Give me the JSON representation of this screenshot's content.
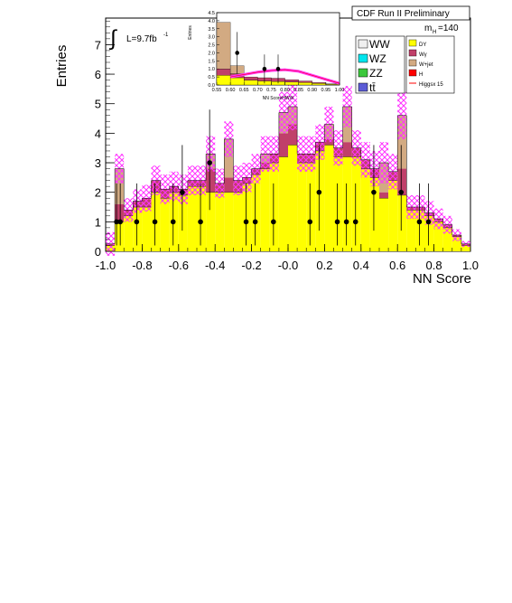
{
  "chart_data": {
    "type": "bar",
    "title": "CDF Run II Preliminary",
    "xlabel": "NN Score",
    "ylabel": "Entries",
    "xlim": [
      -1.0,
      1.0
    ],
    "ylim": [
      0,
      7.9
    ],
    "x_ticks": [
      "-1.0",
      "-0.8",
      "-0.6",
      "-0.4",
      "-0.2",
      "-0.0",
      "0.2",
      "0.4",
      "0.6",
      "0.8",
      "1.0"
    ],
    "y_ticks": [
      "0",
      "1",
      "2",
      "3",
      "4",
      "5",
      "6",
      "7"
    ],
    "luminosity_label": "L=9.7fb",
    "luminosity_exponent": "-1",
    "mass_label_main": "m",
    "mass_label_sub": "H",
    "mass_value": "=140",
    "legend_left": [
      {
        "label": "WW",
        "color": "#f0f0f0"
      },
      {
        "label": "WZ",
        "color": "#00e5ee"
      },
      {
        "label": "ZZ",
        "color": "#3cc83c"
      },
      {
        "label": "tt̄",
        "color": "#5c5cd6"
      }
    ],
    "legend_right": [
      {
        "label": "DY",
        "color": "#ffff00"
      },
      {
        "label": "Wγ",
        "color": "#c0406a"
      },
      {
        "label": "W+jet",
        "color": "#d2aa82"
      },
      {
        "label": "H",
        "color": "#ff0000"
      },
      {
        "label": "Higgsx 15",
        "color": "#ff0000",
        "style": "line"
      }
    ],
    "colors": {
      "dy": "#ffff00",
      "wgamma": "#c0406a",
      "wjet": "#d2aa82",
      "uncertainty": "#ff33ff",
      "higgs_line": "#ff0000"
    },
    "bin_edges": [
      -1.0,
      -0.95,
      -0.9,
      -0.85,
      -0.8,
      -0.75,
      -0.7,
      -0.65,
      -0.6,
      -0.55,
      -0.5,
      -0.45,
      -0.4,
      -0.35,
      -0.3,
      -0.25,
      -0.2,
      -0.15,
      -0.1,
      -0.05,
      0.0,
      0.05,
      0.1,
      0.15,
      0.2,
      0.25,
      0.3,
      0.35,
      0.4,
      0.45,
      0.5,
      0.55,
      0.6,
      0.65,
      0.7,
      0.75,
      0.8,
      0.85,
      0.9,
      0.95,
      1.0
    ],
    "series": [
      {
        "name": "DY",
        "values": [
          0.2,
          1.0,
          1.2,
          1.5,
          1.5,
          2.0,
          1.8,
          2.0,
          1.9,
          2.2,
          2.2,
          2.0,
          2.0,
          2.0,
          2.0,
          2.3,
          2.6,
          2.8,
          3.0,
          3.2,
          3.6,
          3.0,
          3.0,
          3.4,
          3.6,
          3.2,
          3.2,
          3.2,
          2.8,
          2.5,
          1.8,
          2.4,
          1.9,
          1.4,
          1.4,
          1.2,
          1.0,
          0.8,
          0.5,
          0.2
        ]
      },
      {
        "name": "Wγ",
        "values": [
          0.05,
          0.6,
          0.2,
          0.2,
          0.3,
          0.4,
          0.3,
          0.2,
          0.2,
          0.2,
          0.2,
          0.8,
          0.3,
          0.5,
          0.4,
          0.2,
          0.2,
          0.2,
          0.3,
          0.8,
          0.7,
          0.3,
          0.3,
          0.3,
          0.2,
          0.3,
          0.5,
          0.3,
          0.3,
          0.3,
          0.2,
          0.3,
          0.9,
          0.1,
          0.1,
          0.1,
          0.1,
          0.1,
          0.05,
          0.05
        ]
      },
      {
        "name": "W+jet",
        "values": [
          0.0,
          1.2,
          0.0,
          0.0,
          0.0,
          0.0,
          0.0,
          0.0,
          0.0,
          0.0,
          0.0,
          0.5,
          0.0,
          1.3,
          0.0,
          0.0,
          0.0,
          0.3,
          0.0,
          0.7,
          0.6,
          0.0,
          0.0,
          0.0,
          0.5,
          0.0,
          1.2,
          0.0,
          0.0,
          0.0,
          1.0,
          0.0,
          1.8,
          0.0,
          0.0,
          0.0,
          0.0,
          0.0,
          0.0,
          0.0
        ]
      }
    ],
    "uncertainty_band": [
      0.4,
      0.5,
      0.4,
      0.4,
      0.45,
      0.5,
      0.5,
      0.5,
      0.5,
      0.5,
      0.5,
      0.6,
      0.5,
      0.6,
      0.5,
      0.5,
      0.5,
      0.6,
      0.6,
      0.7,
      0.8,
      0.6,
      0.6,
      0.6,
      0.6,
      0.6,
      0.7,
      0.6,
      0.6,
      0.6,
      0.7,
      0.6,
      0.8,
      0.4,
      0.4,
      0.4,
      0.35,
      0.3,
      0.2,
      0.1
    ],
    "data_points": [
      {
        "x": -0.94,
        "y": 1,
        "err_lo": 0.8,
        "err_hi": 1.3
      },
      {
        "x": -0.92,
        "y": 1,
        "err_lo": 0.8,
        "err_hi": 1.3
      },
      {
        "x": -0.83,
        "y": 1,
        "err_lo": 0.8,
        "err_hi": 1.3
      },
      {
        "x": -0.73,
        "y": 1,
        "err_lo": 0.8,
        "err_hi": 1.3
      },
      {
        "x": -0.63,
        "y": 1,
        "err_lo": 0.8,
        "err_hi": 1.3
      },
      {
        "x": -0.58,
        "y": 2,
        "err_lo": 1.3,
        "err_hi": 1.6
      },
      {
        "x": -0.48,
        "y": 1,
        "err_lo": 0.8,
        "err_hi": 1.3
      },
      {
        "x": -0.43,
        "y": 3,
        "err_lo": 1.6,
        "err_hi": 1.8
      },
      {
        "x": -0.23,
        "y": 1,
        "err_lo": 0.8,
        "err_hi": 1.3
      },
      {
        "x": -0.18,
        "y": 1,
        "err_lo": 0.8,
        "err_hi": 1.3
      },
      {
        "x": -0.08,
        "y": 1,
        "err_lo": 0.8,
        "err_hi": 1.3
      },
      {
        "x": 0.12,
        "y": 1,
        "err_lo": 0.8,
        "err_hi": 1.3
      },
      {
        "x": 0.17,
        "y": 2,
        "err_lo": 1.3,
        "err_hi": 1.6
      },
      {
        "x": 0.27,
        "y": 1,
        "err_lo": 0.8,
        "err_hi": 1.3
      },
      {
        "x": 0.32,
        "y": 1,
        "err_lo": 0.8,
        "err_hi": 1.3
      },
      {
        "x": 0.37,
        "y": 1,
        "err_lo": 0.8,
        "err_hi": 1.3
      },
      {
        "x": 0.47,
        "y": 2,
        "err_lo": 1.3,
        "err_hi": 1.6
      },
      {
        "x": 0.62,
        "y": 2,
        "err_lo": 1.3,
        "err_hi": 1.6
      },
      {
        "x": 0.72,
        "y": 1,
        "err_lo": 0.8,
        "err_hi": 1.3
      },
      {
        "x": 0.77,
        "y": 1,
        "err_lo": 0.8,
        "err_hi": 1.3
      }
    ],
    "inset": {
      "xlabel": "NN ScoreHWW",
      "ylabel": "Entries",
      "xlim": [
        0.55,
        1.0
      ],
      "ylim": [
        0,
        4.5
      ],
      "x_ticks": [
        "0.55",
        "0.60",
        "0.65",
        "0.70",
        "0.75",
        "0.80",
        "0.85",
        "0.90",
        "0.95",
        "1.00"
      ],
      "y_ticks": [
        "0.0",
        "0.5",
        "1.0",
        "1.5",
        "2.0",
        "2.5",
        "3.0",
        "3.5",
        "4.0",
        "4.5"
      ],
      "bin_edges": [
        0.55,
        0.6,
        0.65,
        0.7,
        0.75,
        0.8,
        0.85,
        0.9,
        0.95,
        1.0
      ],
      "dy": [
        0.6,
        0.45,
        0.3,
        0.25,
        0.22,
        0.18,
        0.15,
        0.1,
        0.05
      ],
      "wgamma": [
        0.4,
        0.25,
        0.2,
        0.2,
        0.2,
        0.15,
        0.1,
        0.05,
        0.02
      ],
      "wjet": [
        2.9,
        0.5,
        0.0,
        0.0,
        0.0,
        0.0,
        0.0,
        0.0,
        0.0
      ],
      "higgs_curve": [
        [
          0.6,
          0.5
        ],
        [
          0.65,
          0.65
        ],
        [
          0.7,
          0.8
        ],
        [
          0.75,
          0.9
        ],
        [
          0.8,
          0.95
        ],
        [
          0.85,
          0.85
        ],
        [
          0.9,
          0.6
        ],
        [
          0.95,
          0.35
        ],
        [
          1.0,
          0.1
        ]
      ],
      "data_points": [
        {
          "x": 0.625,
          "y": 2,
          "err": 1.3
        },
        {
          "x": 0.725,
          "y": 1,
          "err": 0.9
        },
        {
          "x": 0.775,
          "y": 1,
          "err": 0.9
        }
      ]
    }
  }
}
